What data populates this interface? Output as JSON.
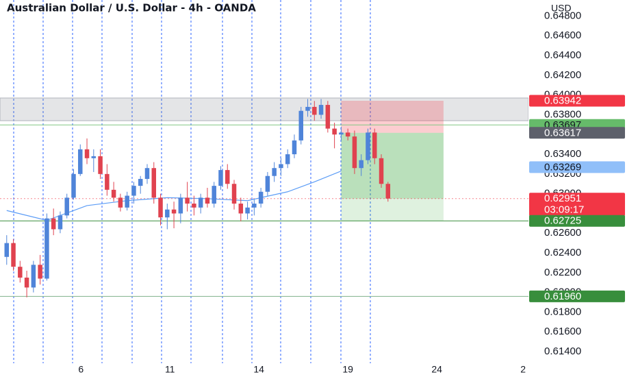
{
  "chart_data": {
    "type": "candlestick",
    "title": "Australian Dollar / U.S. Dollar - 4h - OANDA",
    "currency": "USD",
    "colors": {
      "up": "#4f84d9",
      "down": "#e0424f"
    },
    "x": [
      0,
      1,
      2,
      3,
      4,
      5,
      6,
      7,
      8,
      9,
      10,
      11,
      12,
      13,
      14,
      15,
      16,
      17,
      18,
      19,
      20,
      21,
      22,
      23,
      24,
      25,
      26,
      27,
      28,
      29,
      30,
      31,
      32,
      33,
      34,
      35,
      36,
      37,
      38,
      39,
      40,
      41,
      42,
      43,
      44,
      45,
      46,
      47,
      48,
      49,
      50,
      51,
      52,
      53,
      54,
      55,
      56,
      57
    ],
    "open": [
      0.6236,
      0.625,
      0.6226,
      0.6215,
      0.6205,
      0.6228,
      0.6214,
      0.6275,
      0.6264,
      0.6278,
      0.6296,
      0.632,
      0.6345,
      0.6336,
      0.6338,
      0.632,
      0.6304,
      0.6296,
      0.6286,
      0.6298,
      0.6308,
      0.6315,
      0.6326,
      0.6296,
      0.6276,
      0.6284,
      0.628,
      0.6296,
      0.629,
      0.6286,
      0.6296,
      0.629,
      0.6308,
      0.6324,
      0.631,
      0.629,
      0.628,
      0.6286,
      0.629,
      0.6302,
      0.6318,
      0.6326,
      0.633,
      0.634,
      0.6354,
      0.6384,
      0.6388,
      0.638,
      0.639,
      0.6366,
      0.636,
      0.6362,
      0.6358,
      0.6326,
      0.6334,
      0.6362,
      0.6336,
      0.631
    ],
    "high": [
      0.6258,
      0.6254,
      0.6232,
      0.6222,
      0.6232,
      0.6238,
      0.628,
      0.6285,
      0.6282,
      0.63,
      0.6325,
      0.635,
      0.6356,
      0.6345,
      0.6345,
      0.633,
      0.6312,
      0.63,
      0.6302,
      0.6312,
      0.6318,
      0.633,
      0.6332,
      0.63,
      0.629,
      0.6292,
      0.63,
      0.6312,
      0.6298,
      0.63,
      0.6306,
      0.6312,
      0.6328,
      0.633,
      0.6314,
      0.6296,
      0.6292,
      0.6294,
      0.6306,
      0.6322,
      0.6332,
      0.6336,
      0.6345,
      0.636,
      0.6388,
      0.6396,
      0.6394,
      0.6396,
      0.6394,
      0.6372,
      0.6368,
      0.6366,
      0.6364,
      0.634,
      0.6366,
      0.6366,
      0.634,
      0.6312
    ],
    "low": [
      0.6228,
      0.6222,
      0.621,
      0.6195,
      0.62,
      0.6208,
      0.6212,
      0.6258,
      0.626,
      0.6275,
      0.6294,
      0.6318,
      0.633,
      0.6322,
      0.6315,
      0.6298,
      0.6292,
      0.6282,
      0.6283,
      0.629,
      0.63,
      0.631,
      0.629,
      0.6268,
      0.6264,
      0.6265,
      0.627,
      0.6282,
      0.6278,
      0.628,
      0.6286,
      0.6286,
      0.6304,
      0.6305,
      0.6284,
      0.6272,
      0.6274,
      0.6278,
      0.6286,
      0.6298,
      0.6312,
      0.6318,
      0.6326,
      0.6336,
      0.635,
      0.6378,
      0.6374,
      0.6376,
      0.6362,
      0.6346,
      0.6354,
      0.6354,
      0.632,
      0.6318,
      0.633,
      0.633,
      0.6306,
      0.6292
    ],
    "close": [
      0.625,
      0.6226,
      0.6215,
      0.6205,
      0.6228,
      0.6214,
      0.6275,
      0.6264,
      0.6278,
      0.6296,
      0.632,
      0.6345,
      0.6336,
      0.6338,
      0.632,
      0.6304,
      0.6296,
      0.6286,
      0.6298,
      0.6308,
      0.6315,
      0.6326,
      0.6296,
      0.6276,
      0.6284,
      0.628,
      0.6296,
      0.629,
      0.6286,
      0.6296,
      0.629,
      0.6308,
      0.6324,
      0.631,
      0.629,
      0.628,
      0.6286,
      0.629,
      0.6302,
      0.6318,
      0.6326,
      0.633,
      0.634,
      0.6354,
      0.6384,
      0.6388,
      0.638,
      0.639,
      0.6366,
      0.636,
      0.6362,
      0.6358,
      0.6326,
      0.6334,
      0.6362,
      0.6336,
      0.631,
      0.62951
    ],
    "ma": {
      "color": "#5b9cf6",
      "x": [
        0,
        6,
        12,
        18,
        24,
        30,
        36,
        42,
        46,
        50
      ],
      "values": [
        0.6283,
        0.6273,
        0.6288,
        0.6293,
        0.6296,
        0.6295,
        0.6293,
        0.6302,
        0.6312,
        0.6323
      ]
    },
    "xlim": [
      -1,
      78
    ],
    "ylim": [
      0.61282,
      0.64963
    ],
    "xticks": [
      {
        "value": 11.1,
        "label": "6"
      },
      {
        "value": 24.4,
        "label": "11"
      },
      {
        "value": 37.7,
        "label": "14"
      },
      {
        "value": 51,
        "label": "19"
      },
      {
        "value": 64.3,
        "label": "24"
      },
      {
        "value": 77.2,
        "label": "2"
      }
    ],
    "yticks": [
      {
        "value": 0.614,
        "label": "0.61400"
      },
      {
        "value": 0.616,
        "label": "0.61600"
      },
      {
        "value": 0.618,
        "label": "0.61800"
      },
      {
        "value": 0.62,
        "label": "0.62000"
      },
      {
        "value": 0.622,
        "label": "0.62200"
      },
      {
        "value": 0.624,
        "label": "0.62400"
      },
      {
        "value": 0.626,
        "label": "0.62600"
      },
      {
        "value": 0.628,
        "label": "0.62800"
      },
      {
        "value": 0.63,
        "label": "0.63000"
      },
      {
        "value": 0.632,
        "label": "0.63200"
      },
      {
        "value": 0.634,
        "label": "0.63400"
      },
      {
        "value": 0.636,
        "label": "0.63600"
      },
      {
        "value": 0.638,
        "label": "0.63800"
      },
      {
        "value": 0.64,
        "label": "0.64000"
      },
      {
        "value": 0.642,
        "label": "0.64200"
      },
      {
        "value": 0.644,
        "label": "0.64400"
      },
      {
        "value": 0.646,
        "label": "0.64600"
      },
      {
        "value": 0.648,
        "label": "0.64800"
      }
    ],
    "zone": [
      0.6374,
      0.6397
    ],
    "levels": [
      {
        "value": 0.63697,
        "color": "#81c784"
      },
      {
        "value": 0.62725,
        "color": "#388e3c"
      },
      {
        "value": 0.6196,
        "color": "#7fb08a"
      }
    ],
    "position": {
      "x": [
        50,
        65.3
      ],
      "stop": 0.63942,
      "entry": 0.63617,
      "target": 0.62725,
      "current": 0.62951
    },
    "price_labels": [
      {
        "value": 0.63942,
        "color": "#f23645",
        "text_color": "#ffffff"
      },
      {
        "value": 0.63697,
        "color": "#66bb6a",
        "text_color": "#131722"
      },
      {
        "value": 0.63617,
        "color": "#5d606b",
        "text_color": "#ffffff"
      },
      {
        "value": 0.63269,
        "color": "#90bff9",
        "text_color": "#131722"
      },
      {
        "value": 0.62951,
        "color": "#f23645",
        "text_color": "#ffffff",
        "countdown": "03:09:17"
      },
      {
        "value": 0.62725,
        "color": "#388e3c",
        "text_color": "#ffffff"
      },
      {
        "value": 0.6196,
        "label": "0.61960",
        "color": "#388e3c",
        "text_color": "#ffffff"
      }
    ]
  }
}
